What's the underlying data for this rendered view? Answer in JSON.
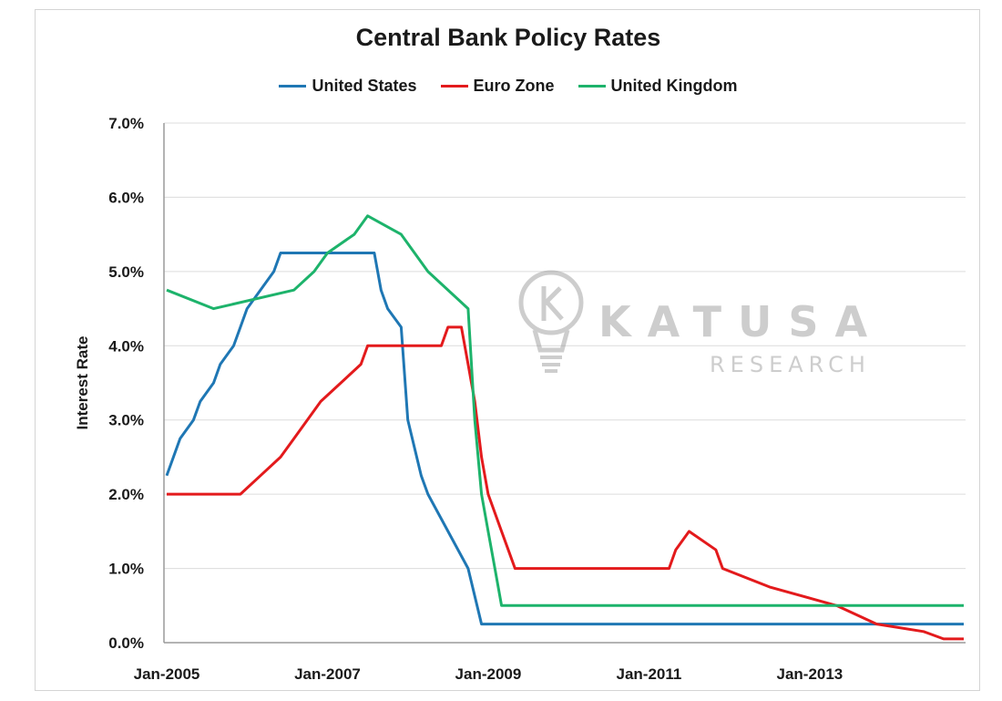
{
  "chart_data": {
    "type": "line",
    "title": "Central Bank Policy Rates",
    "xlabel": "",
    "ylabel": "Interest Rate",
    "xlim": [
      "2005-01",
      "2014-12"
    ],
    "ylim": [
      0,
      7
    ],
    "y_ticks": [
      {
        "value": 0,
        "label": "0.0%"
      },
      {
        "value": 1,
        "label": "1.0%"
      },
      {
        "value": 2,
        "label": "2.0%"
      },
      {
        "value": 3,
        "label": "3.0%"
      },
      {
        "value": 4,
        "label": "4.0%"
      },
      {
        "value": 5,
        "label": "5.0%"
      },
      {
        "value": 6,
        "label": "6.0%"
      },
      {
        "value": 7,
        "label": "7.0%"
      }
    ],
    "x_ticks": [
      {
        "value": "2005-01",
        "label": "Jan-2005"
      },
      {
        "value": "2007-01",
        "label": "Jan-2007"
      },
      {
        "value": "2009-01",
        "label": "Jan-2009"
      },
      {
        "value": "2011-01",
        "label": "Jan-2011"
      },
      {
        "value": "2013-01",
        "label": "Jan-2013"
      }
    ],
    "grid": true,
    "legend_position": "top",
    "series": [
      {
        "name": "United States",
        "color": "#1f77b4",
        "points": [
          [
            "2005-01",
            2.25
          ],
          [
            "2005-02",
            2.5
          ],
          [
            "2005-03",
            2.75
          ],
          [
            "2005-05",
            3.0
          ],
          [
            "2005-06",
            3.25
          ],
          [
            "2005-08",
            3.5
          ],
          [
            "2005-09",
            3.75
          ],
          [
            "2005-11",
            4.0
          ],
          [
            "2005-12",
            4.25
          ],
          [
            "2006-01",
            4.5
          ],
          [
            "2006-03",
            4.75
          ],
          [
            "2006-05",
            5.0
          ],
          [
            "2006-06",
            5.25
          ],
          [
            "2007-08",
            5.25
          ],
          [
            "2007-09",
            4.75
          ],
          [
            "2007-10",
            4.5
          ],
          [
            "2007-12",
            4.25
          ],
          [
            "2008-01",
            3.0
          ],
          [
            "2008-03",
            2.25
          ],
          [
            "2008-04",
            2.0
          ],
          [
            "2008-10",
            1.0
          ],
          [
            "2008-12",
            0.25
          ],
          [
            "2014-12",
            0.25
          ]
        ]
      },
      {
        "name": "Euro Zone",
        "color": "#e31a1c",
        "points": [
          [
            "2005-01",
            2.0
          ],
          [
            "2005-12",
            2.0
          ],
          [
            "2006-03",
            2.25
          ],
          [
            "2006-06",
            2.5
          ],
          [
            "2006-08",
            2.75
          ],
          [
            "2006-10",
            3.0
          ],
          [
            "2006-12",
            3.25
          ],
          [
            "2007-03",
            3.5
          ],
          [
            "2007-06",
            3.75
          ],
          [
            "2007-07",
            4.0
          ],
          [
            "2008-06",
            4.0
          ],
          [
            "2008-07",
            4.25
          ],
          [
            "2008-09",
            4.25
          ],
          [
            "2008-10",
            3.75
          ],
          [
            "2008-11",
            3.25
          ],
          [
            "2008-12",
            2.5
          ],
          [
            "2009-01",
            2.0
          ],
          [
            "2009-03",
            1.5
          ],
          [
            "2009-04",
            1.25
          ],
          [
            "2009-05",
            1.0
          ],
          [
            "2011-04",
            1.0
          ],
          [
            "2011-05",
            1.25
          ],
          [
            "2011-07",
            1.5
          ],
          [
            "2011-11",
            1.25
          ],
          [
            "2011-12",
            1.0
          ],
          [
            "2012-07",
            0.75
          ],
          [
            "2013-05",
            0.5
          ],
          [
            "2013-11",
            0.25
          ],
          [
            "2014-06",
            0.15
          ],
          [
            "2014-09",
            0.05
          ],
          [
            "2014-12",
            0.05
          ]
        ]
      },
      {
        "name": "United Kingdom",
        "color": "#1db36b",
        "points": [
          [
            "2005-01",
            4.75
          ],
          [
            "2005-08",
            4.5
          ],
          [
            "2006-08",
            4.75
          ],
          [
            "2006-11",
            5.0
          ],
          [
            "2007-01",
            5.25
          ],
          [
            "2007-05",
            5.5
          ],
          [
            "2007-07",
            5.75
          ],
          [
            "2007-12",
            5.5
          ],
          [
            "2008-02",
            5.25
          ],
          [
            "2008-04",
            5.0
          ],
          [
            "2008-10",
            4.5
          ],
          [
            "2008-11",
            3.0
          ],
          [
            "2008-12",
            2.0
          ],
          [
            "2009-01",
            1.5
          ],
          [
            "2009-02",
            1.0
          ],
          [
            "2009-03",
            0.5
          ],
          [
            "2014-12",
            0.5
          ]
        ]
      }
    ]
  },
  "watermark": {
    "name": "KATUSA",
    "sub": "RESEARCH",
    "logo_icon": "lightbulb-k-logo"
  }
}
